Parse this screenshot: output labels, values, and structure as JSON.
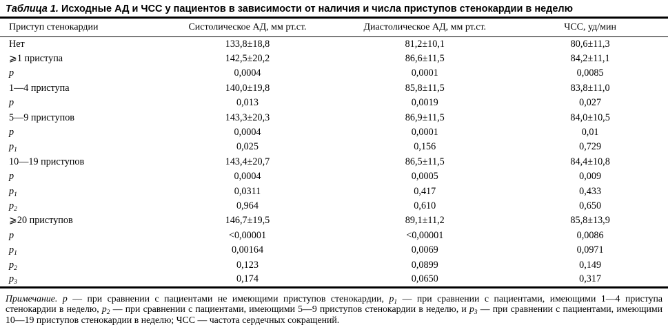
{
  "title": {
    "label": "Таблица 1.",
    "text": " Исходные АД и ЧСС у пациентов в зависимости от наличия и числа приступов стенокардии в неделю"
  },
  "table": {
    "columns": [
      "Приступ стенокардии",
      "Систолическое АД, мм рт.ст.",
      "Диастолическое АД, мм рт.ст.",
      "ЧСС, уд/мин"
    ],
    "rows": [
      {
        "label": "Нет",
        "sub": "",
        "italic": false,
        "values": [
          "133,8±18,8",
          "81,2±10,1",
          "80,6±11,3"
        ]
      },
      {
        "label": "⩾1 приступа",
        "sub": "",
        "italic": false,
        "values": [
          "142,5±20,2",
          "86,6±11,5",
          "84,2±11,1"
        ]
      },
      {
        "label": "p",
        "sub": "",
        "italic": true,
        "values": [
          "0,0004",
          "0,0001",
          "0,0085"
        ]
      },
      {
        "label": "1—4 приступа",
        "sub": "",
        "italic": false,
        "values": [
          "140,0±19,8",
          "85,8±11,5",
          "83,8±11,0"
        ]
      },
      {
        "label": "p",
        "sub": "",
        "italic": true,
        "values": [
          "0,013",
          "0,0019",
          "0,027"
        ]
      },
      {
        "label": "5—9 приступов",
        "sub": "",
        "italic": false,
        "values": [
          "143,3±20,3",
          "86,9±11,5",
          "84,0±10,5"
        ]
      },
      {
        "label": "p",
        "sub": "",
        "italic": true,
        "values": [
          "0,0004",
          "0,0001",
          "0,01"
        ]
      },
      {
        "label": "p",
        "sub": "1",
        "italic": true,
        "values": [
          "0,025",
          "0,156",
          "0,729"
        ]
      },
      {
        "label": "10—19 приступов",
        "sub": "",
        "italic": false,
        "values": [
          "143,4±20,7",
          "86,5±11,5",
          "84,4±10,8"
        ]
      },
      {
        "label": "p",
        "sub": "",
        "italic": true,
        "values": [
          "0,0004",
          "0,0005",
          "0,009"
        ]
      },
      {
        "label": "p",
        "sub": "1",
        "italic": true,
        "values": [
          "0,0311",
          "0,417",
          "0,433"
        ]
      },
      {
        "label": "p",
        "sub": "2",
        "italic": true,
        "values": [
          "0,964",
          "0,610",
          "0,650"
        ]
      },
      {
        "label": "⩾20 приступов",
        "sub": "",
        "italic": false,
        "values": [
          "146,7±19,5",
          "89,1±11,2",
          "85,8±13,9"
        ]
      },
      {
        "label": "p",
        "sub": "",
        "italic": true,
        "values": [
          "<0,00001",
          "<0,00001",
          "0,0086"
        ]
      },
      {
        "label": "p",
        "sub": "1",
        "italic": true,
        "values": [
          "0,00164",
          "0,0069",
          "0,0971"
        ]
      },
      {
        "label": "p",
        "sub": "2",
        "italic": true,
        "values": [
          "0,123",
          "0,0899",
          "0,149"
        ]
      },
      {
        "label": "p",
        "sub": "3",
        "italic": true,
        "values": [
          "0,174",
          "0,0650",
          "0,317"
        ]
      }
    ]
  },
  "footnote": {
    "label": "Примечание. ",
    "p": "p",
    "part1": " — при сравнении с пациентами не имеющими приступов стенокардии, ",
    "p1": "p",
    "p1_sub": "1",
    "part2": " — при сравнении с пациентами, имеющими 1—4 приступа стенокардии в неделю, ",
    "p2": "p",
    "p2_sub": "2",
    "part3": " — при сравнении с пациентами, имеющими 5—9 приступов стенокардии в неделю, и ",
    "p3": "p",
    "p3_sub": "3",
    "part4": " — при сравнении с пациентами, имеющими 10—19 приступов стенокардии в неделю; ЧСС — частота сердечных сокращений."
  }
}
